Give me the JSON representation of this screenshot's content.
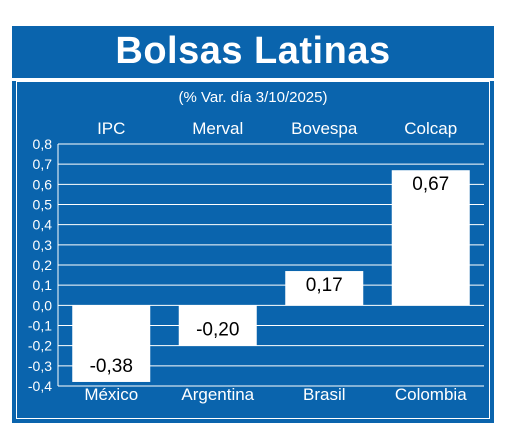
{
  "chart_data": {
    "type": "bar",
    "title": "Bolsas Latinas",
    "subtitle": "(% Var. día 3/10/2025)",
    "series_labels": [
      "IPC",
      "Merval",
      "Bovespa",
      "Colcap"
    ],
    "categories": [
      "México",
      "Argentina",
      "Brasil",
      "Colombia"
    ],
    "values": [
      -0.38,
      -0.2,
      0.17,
      0.67
    ],
    "value_labels": [
      "-0,38",
      "-0,20",
      "0,17",
      "0,67"
    ],
    "ylim": [
      -0.4,
      0.8
    ],
    "yticks": [
      "0,8",
      "0,7",
      "0,6",
      "0,5",
      "0,4",
      "0,3",
      "0,2",
      "0,1",
      "0,0",
      "-0,1",
      "-0,2",
      "-0,3",
      "-0,4"
    ],
    "ytick_values": [
      0.8,
      0.7,
      0.6,
      0.5,
      0.4,
      0.3,
      0.2,
      0.1,
      0.0,
      -0.1,
      -0.2,
      -0.3,
      -0.4
    ],
    "grid": true,
    "colors": {
      "background": "#0a64ad",
      "bar": "#ffffff",
      "text": "#ffffff",
      "value_text": "#000000"
    }
  }
}
